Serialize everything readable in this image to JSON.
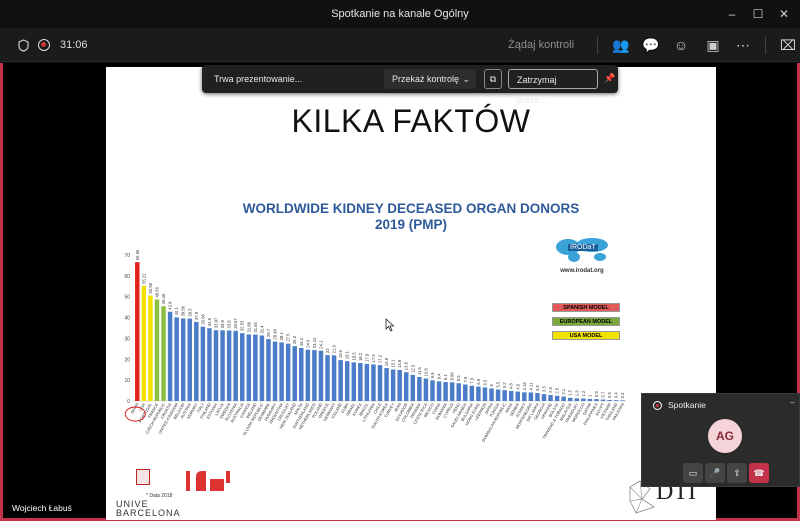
{
  "window": {
    "title": "Spotkanie na kanale Ogólny"
  },
  "toolbar": {
    "timer": "31:06",
    "request_control": "Żądaj kontroli"
  },
  "share_bar": {
    "status": "Trwa prezentowanie...",
    "pass_control": "Przekaż kontrolę",
    "stop": "Zatrzymaj preze..."
  },
  "slide": {
    "title": "KILKA FAKTÓW",
    "chart_title_line1": "WORLDWIDE KIDNEY DECEASED ORGAN DONORS",
    "chart_title_line2": "2019 (PMP)",
    "logo_text": "IRODaT",
    "logo_url": "www.irodat.org",
    "legend": [
      {
        "label": "SPANISH MODEL",
        "color": "#e05a5a"
      },
      {
        "label": "EUROPEAN MODEL",
        "color": "#7aa83a"
      },
      {
        "label": "USA MODEL",
        "color": "#f2e200"
      }
    ],
    "footnote": "* Data 2018",
    "univ_text_1": "UNIVE",
    "univ_text_2": "BARCELONA",
    "dti_text": "DTI"
  },
  "chart_data": {
    "type": "bar",
    "title": "WORLDWIDE KIDNEY DECEASED ORGAN DONORS 2019 (PMP)",
    "ylim": [
      0,
      70
    ],
    "yticks": [
      0,
      10,
      20,
      30,
      40,
      50,
      60,
      70
    ],
    "values": [
      66.55,
      55.21,
      50.59,
      48.65,
      45.45,
      42.8,
      40.1,
      39.56,
      39.5,
      37.9,
      35.66,
      34.9,
      33.97,
      33.9,
      33.8,
      33.67,
      32.53,
      31.89,
      31.84,
      31.4,
      29.7,
      28.48,
      28.1,
      27.5,
      26.3,
      25.4,
      24.6,
      24.41,
      24.1,
      22.0,
      21.9,
      19.6,
      19.1,
      18.5,
      18.2,
      17.8,
      17.5,
      17.2,
      15.8,
      15.1,
      14.9,
      13.8,
      12.5,
      11.5,
      10.8,
      9.9,
      9.4,
      9.1,
      8.96,
      8.5,
      7.9,
      7.3,
      6.9,
      6.5,
      6.0,
      5.5,
      5.2,
      4.8,
      4.5,
      4.16,
      4.11,
      3.8,
      3.3,
      2.9,
      2.5,
      2.1,
      1.5,
      1.3,
      1.2,
      1.0,
      0.9,
      0.7,
      0.5,
      0.4,
      0.3
    ],
    "colors": {
      "spanish": "#e0241c",
      "european": "#8cbf3f",
      "usa": "#f2e200",
      "other": "#4a7cc8"
    },
    "highlight": [
      {
        "index": 0,
        "model": "spanish"
      },
      {
        "index": 1,
        "model": "usa"
      },
      {
        "index": 2,
        "model": "usa"
      },
      {
        "index": 3,
        "model": "european"
      },
      {
        "index": 4,
        "model": "european"
      }
    ],
    "categories": [
      "SPAIN",
      "USA",
      "PORTUGAL",
      "FRANCE",
      "CZECH REPUBLIC",
      "CROATIA",
      "UNITED KINGDOM",
      "BELGIUM",
      "AUSTRIA",
      "NORWAY",
      "ITALY",
      "FINLAND",
      "ESTONIA",
      "LATVIA",
      "SWEDEN",
      "SLOVENIA",
      "AUSTRALIA",
      "CANADA",
      "IRELAND",
      "SLOVAK REPUBLIC",
      "DENMARK",
      "HUNGARY",
      "ARGENTINA",
      "URUGUAY",
      "NEW ZEALAND",
      "MALTA",
      "SWITZERLAND",
      "NETHERLANDS",
      "POLAND",
      "GREECE",
      "GERMANY",
      "ICELAND",
      "CUBA",
      "ISRAEL",
      "KOREA",
      "BRAZIL",
      "LITHUANIA",
      "CHILE",
      "SOUTH KOREA",
      "TURKEY",
      "IRAN",
      "ECUADOR",
      "COLOMBIA",
      "PANAMA",
      "COSTA RICA",
      "MEXICO",
      "CHINA",
      "ROMANIA",
      "CYPRUS",
      "PERU",
      "SAUDI ARABIA",
      "BULGARIA",
      "HONG KONG",
      "LEBANON",
      "JAPAN",
      "TUNISIA",
      "DOMINICAN REPUBLIC",
      "INDIA",
      "SERBIA",
      "KUWAIT",
      "MONTENEGRO",
      "SRI LANKA",
      "GEORGIA",
      "UKRAINE",
      "BOLIVIA",
      "TRINIDAD & TOBAGO",
      "MALAYSIA",
      "PARAGUAY",
      "MOROCCO",
      "QATAR",
      "PHILIPPINES",
      "EGYPT",
      "VIETNAM",
      "THAILAND",
      "PAKISTAN"
    ]
  },
  "presenter": {
    "name": "Wojciech Łabuś"
  },
  "call_popup": {
    "title": "Spotkanie",
    "initials": "AG"
  }
}
